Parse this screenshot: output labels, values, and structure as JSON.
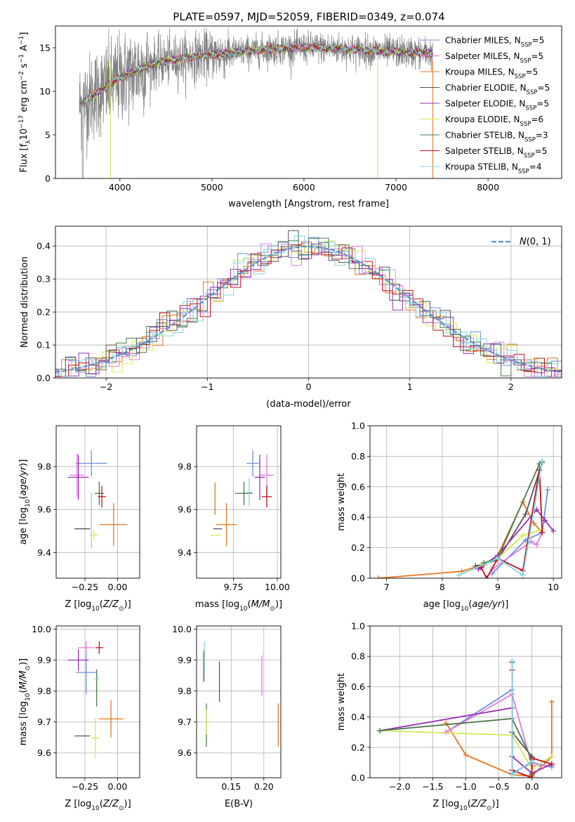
{
  "figure_title": "PLATE=0597, MJD=52059, FIBERID=0349, z=0.074",
  "colors": {
    "chabrier_miles": "#6f8fdc",
    "salpeter_miles": "#e07be0",
    "kroupa_miles": "#e8761e",
    "chabrier_elodie": "#555555",
    "salpeter_elodie": "#9a2fb4",
    "kroupa_elodie": "#d4e75a",
    "chabrier_stelib": "#4a7a4a",
    "salpeter_stelib": "#c0101a",
    "kroupa_stelib": "#7fd6e0",
    "data_grey": "#808080",
    "normal_curve": "#5b8fd6"
  },
  "chart_data": [
    {
      "id": "spectrum",
      "type": "line",
      "title": "PLATE=0597, MJD=52059, FIBERID=0349, z=0.074",
      "xlabel": "wavelength [Angstrom, rest frame]",
      "ylabel": "Flux [f_λ10^-17 erg cm^-2 s^-1 A^-1]",
      "xlim": [
        3300,
        8800
      ],
      "ylim": [
        0,
        17.5
      ],
      "xticks": [
        4000,
        5000,
        6000,
        7000,
        8000
      ],
      "yticks": [
        0,
        5,
        10,
        15
      ],
      "grid": false,
      "legend_placement": "right",
      "legend": [
        "Chabrier MILES, N_SSP=5",
        "Salpeter MILES, N_SSP=5",
        "Kroupa MILES, N_SSP=5",
        "Chabrier ELODIE, N_SSP=5",
        "Salpeter ELODIE, N_SSP=5",
        "Kroupa ELODIE, N_SSP=6",
        "Chabrier STELIB, N_SSP=3",
        "Salpeter STELIB, N_SSP=5",
        "Kroupa STELIB, N_SSP=4"
      ],
      "continuum": {
        "x": [
          3580,
          3700,
          3850,
          4000,
          4200,
          4400,
          4700,
          5000,
          5300,
          5600,
          5900,
          6200,
          6500,
          6800,
          7100,
          7400,
          7600
        ],
        "y": [
          8.5,
          9.5,
          10.5,
          11.5,
          12.5,
          13.3,
          13.8,
          14.2,
          14.5,
          14.8,
          15.0,
          15.0,
          14.8,
          14.6,
          14.5,
          14.3,
          14.2
        ]
      },
      "data_extent_x": [
        3560,
        7400
      ]
    },
    {
      "id": "residuals",
      "type": "bar",
      "xlabel": "(data-model)/error",
      "ylabel": "Normed distribution",
      "xlim": [
        -2.5,
        2.5
      ],
      "ylim": [
        0,
        0.46
      ],
      "xticks": [
        -2,
        -1,
        0,
        1,
        2
      ],
      "yticks": [
        0.0,
        0.1,
        0.2,
        0.3,
        0.4
      ],
      "grid": true,
      "legend_placement": "top-right",
      "legend": [
        "N(0,1)"
      ],
      "bin_width": 0.1,
      "series_count": 9
    },
    {
      "id": "age-vs-Z",
      "type": "scatter",
      "xlabel": "Z [log10(Z/Z☉)]",
      "ylabel": "age  [log10(age/yr)]",
      "xlim": [
        -0.47,
        0.17
      ],
      "ylim": [
        9.28,
        9.99
      ],
      "xticks": [
        -0.25,
        0.0
      ],
      "yticks": [
        9.4,
        9.6,
        9.8
      ],
      "grid": true,
      "points": [
        {
          "c": "chabrier_miles",
          "x": -0.2,
          "y": 9.815,
          "xe": 0.24,
          "ye": 0.12
        },
        {
          "c": "salpeter_miles",
          "x": -0.31,
          "y": 9.76,
          "xe": 0.11,
          "ye": 0.2
        },
        {
          "c": "kroupa_miles",
          "x": -0.03,
          "y": 9.53,
          "xe": 0.21,
          "ye": 0.2
        },
        {
          "c": "chabrier_elodie",
          "x": -0.27,
          "y": 9.51,
          "xe": 0.12,
          "ye": 0.0
        },
        {
          "c": "salpeter_elodie",
          "x": -0.3,
          "y": 9.75,
          "xe": 0.16,
          "ye": 0.21
        },
        {
          "c": "kroupa_elodie",
          "x": -0.18,
          "y": 9.48,
          "xe": 0.06,
          "ye": 0.05
        },
        {
          "c": "chabrier_stelib",
          "x": -0.14,
          "y": 9.675,
          "xe": 0.07,
          "ye": 0.11
        },
        {
          "c": "salpeter_stelib",
          "x": -0.12,
          "y": 9.66,
          "xe": 0.06,
          "ye": 0.1
        },
        {
          "c": "kroupa_stelib",
          "x": -0.2,
          "y": 9.55,
          "xe": 0.0,
          "ye": 0.26
        }
      ]
    },
    {
      "id": "age-vs-mass",
      "type": "scatter",
      "xlabel": "mass [log10(M/M☉)]",
      "ylabel": "",
      "xlim": [
        9.54,
        10.02
      ],
      "ylim": [
        9.28,
        9.99
      ],
      "xticks": [
        9.75,
        10.0
      ],
      "yticks": [
        9.4,
        9.6,
        9.8
      ],
      "grid": true,
      "points": [
        {
          "c": "chabrier_miles",
          "x": 9.86,
          "y": 9.815,
          "xe": 0.07,
          "ye": 0.12
        },
        {
          "c": "salpeter_miles",
          "x": 9.94,
          "y": 9.76,
          "xe": 0.08,
          "ye": 0.2
        },
        {
          "c": "kroupa_miles",
          "x": 9.71,
          "y": 9.53,
          "xe": 0.12,
          "ye": 0.2
        },
        {
          "c": "chabrier_elodie",
          "x": 9.66,
          "y": 9.51,
          "xe": 0.05,
          "ye": 0.0
        },
        {
          "c": "salpeter_elodie",
          "x": 9.9,
          "y": 9.75,
          "xe": 0.06,
          "ye": 0.21
        },
        {
          "c": "kroupa_elodie",
          "x": 9.65,
          "y": 9.48,
          "xe": 0.06,
          "ye": 0.0
        },
        {
          "c": "chabrier_stelib",
          "x": 9.81,
          "y": 9.675,
          "xe": 0.1,
          "ye": 0.11
        },
        {
          "c": "salpeter_stelib",
          "x": 9.94,
          "y": 9.66,
          "xe": 0.06,
          "ye": 0.1
        },
        {
          "c": "kroupa_stelib",
          "x": 9.84,
          "y": 9.68,
          "xe": 0.03,
          "ye": 0.13
        },
        {
          "c": "kroupa_miles",
          "x": 9.645,
          "y": 9.65,
          "xe": 0.0,
          "ye": 0.15
        }
      ]
    },
    {
      "id": "weight-vs-age",
      "type": "line",
      "xlabel": "age  [log10(age/yr)]",
      "ylabel": "mass weight",
      "xlim": [
        6.7,
        10.15
      ],
      "ylim": [
        0,
        1.0
      ],
      "xticks": [
        7,
        8,
        9,
        10
      ],
      "yticks": [
        0.0,
        0.2,
        0.4,
        0.6,
        0.8,
        1.0
      ],
      "grid": true,
      "series": [
        {
          "c": "kroupa_miles",
          "x": [
            6.85,
            8.35,
            8.75,
            9.0,
            9.45,
            9.65,
            9.8
          ],
          "y": [
            0.0,
            0.045,
            0.09,
            0.15,
            0.5,
            0.36,
            0.3
          ]
        },
        {
          "c": "chabrier_miles",
          "x": [
            8.9,
            9.5,
            9.8,
            9.9
          ],
          "y": [
            0.03,
            0.25,
            0.3,
            0.58
          ]
        },
        {
          "c": "salpeter_miles",
          "x": [
            8.9,
            9.6,
            9.7,
            9.8
          ],
          "y": [
            0.06,
            0.24,
            0.22,
            0.3
          ]
        },
        {
          "c": "chabrier_elodie",
          "x": [
            8.6,
            9.0,
            9.5,
            9.8
          ],
          "y": [
            0.08,
            0.12,
            0.42,
            0.76
          ]
        },
        {
          "c": "salpeter_elodie",
          "x": [
            8.65,
            9.0,
            9.7,
            9.85,
            10.0
          ],
          "y": [
            0.06,
            0.15,
            0.45,
            0.38,
            0.31
          ]
        },
        {
          "c": "kroupa_elodie",
          "x": [
            8.7,
            9.0,
            9.45,
            9.8
          ],
          "y": [
            0.09,
            0.13,
            0.28,
            0.32
          ]
        },
        {
          "c": "chabrier_stelib",
          "x": [
            8.75,
            9.0,
            9.75
          ],
          "y": [
            0.1,
            0.13,
            0.75
          ]
        },
        {
          "c": "salpeter_stelib",
          "x": [
            8.7,
            8.8,
            9.0,
            9.45,
            9.75,
            9.8
          ],
          "y": [
            0.07,
            0.0,
            0.13,
            0.05,
            0.71,
            0.3
          ]
        },
        {
          "c": "kroupa_stelib",
          "x": [
            8.3,
            9.0,
            9.45,
            9.8
          ],
          "y": [
            0.02,
            0.13,
            0.02,
            0.77
          ]
        }
      ]
    },
    {
      "id": "mass-vs-Z",
      "type": "scatter",
      "xlabel": "Z [log10(Z/Z☉)]",
      "ylabel": "mass [log10(M/M☉)]",
      "xlim": [
        -0.47,
        0.17
      ],
      "ylim": [
        9.52,
        10.01
      ],
      "xticks": [
        -0.25,
        0.0
      ],
      "yticks": [
        9.6,
        9.7,
        9.8,
        9.9,
        10.0
      ],
      "grid": true,
      "points": [
        {
          "c": "chabrier_miles",
          "x": -0.24,
          "y": 9.86,
          "xe": 0.16,
          "ye": 0.14
        },
        {
          "c": "salpeter_miles",
          "x": -0.24,
          "y": 9.94,
          "xe": 0.12,
          "ye": 0.04
        },
        {
          "c": "kroupa_miles",
          "x": -0.05,
          "y": 9.71,
          "xe": 0.19,
          "ye": 0.12
        },
        {
          "c": "chabrier_elodie",
          "x": -0.27,
          "y": 9.655,
          "xe": 0.12,
          "ye": 0.0
        },
        {
          "c": "salpeter_elodie",
          "x": -0.3,
          "y": 9.9,
          "xe": 0.16,
          "ye": 0.07
        },
        {
          "c": "kroupa_elodie",
          "x": -0.17,
          "y": 9.648,
          "xe": 0.06,
          "ye": 0.13
        },
        {
          "c": "chabrier_stelib",
          "x": -0.16,
          "y": 9.81,
          "xe": 0.0,
          "ye": 0.12
        },
        {
          "c": "salpeter_stelib",
          "x": -0.14,
          "y": 9.94,
          "xe": 0.06,
          "ye": 0.04
        },
        {
          "c": "kroupa_stelib",
          "x": -0.16,
          "y": 9.84,
          "xe": 0.04,
          "ye": 0.0
        }
      ]
    },
    {
      "id": "mass-vs-EBV",
      "type": "scatter",
      "xlabel": "E(B-V)",
      "ylabel": "",
      "xlim": [
        0.097,
        0.226
      ],
      "ylim": [
        9.52,
        10.01
      ],
      "xticks": [
        0.15,
        0.2
      ],
      "yticks": [
        9.6,
        9.7,
        9.8,
        9.9,
        10.0
      ],
      "grid": true,
      "points": [
        {
          "c": "salpeter_stelib",
          "x": 0.108,
          "y": 9.88,
          "xe": 0.0,
          "ye": 0.1
        },
        {
          "c": "chabrier_stelib",
          "x": 0.112,
          "y": 9.69,
          "xe": 0.0,
          "ye": 0.14
        },
        {
          "c": "kroupa_elodie",
          "x": 0.112,
          "y": 9.7,
          "xe": 0.0,
          "ye": 0.08
        },
        {
          "c": "kroupa_stelib",
          "x": 0.109,
          "y": 9.9,
          "xe": 0.0,
          "ye": 0.12
        },
        {
          "c": "salpeter_elodie",
          "x": 0.132,
          "y": 9.83,
          "xe": 0.0,
          "ye": 0.13
        },
        {
          "c": "salpeter_miles",
          "x": 0.197,
          "y": 9.85,
          "xe": 0.0,
          "ye": 0.13
        },
        {
          "c": "kroupa_miles",
          "x": 0.222,
          "y": 9.69,
          "xe": 0.0,
          "ye": 0.14
        }
      ]
    },
    {
      "id": "weight-vs-Z",
      "type": "line",
      "xlabel": "Z [log10(Z/Z☉)]",
      "ylabel": "mass weight",
      "xlim": [
        -2.45,
        0.45
      ],
      "ylim": [
        0,
        1.0
      ],
      "xticks": [
        -2.0,
        -1.5,
        -1.0,
        -0.5,
        0.0
      ],
      "yticks": [
        0.0,
        0.2,
        0.4,
        0.6,
        0.8,
        1.0
      ],
      "grid": true,
      "series": [
        {
          "c": "kroupa_miles",
          "x": [
            -1.3,
            -1.0,
            -0.3,
            0.0,
            0.3,
            0.3
          ],
          "y": [
            0.36,
            0.15,
            0.02,
            0.01,
            0.14,
            0.5
          ]
        },
        {
          "c": "chabrier_miles",
          "x": [
            -1.3,
            -0.3,
            -0.3,
            0.0,
            0.3
          ],
          "y": [
            0.3,
            0.58,
            0.03,
            0.1,
            0.07
          ]
        },
        {
          "c": "salpeter_miles",
          "x": [
            -1.3,
            -0.3,
            0.0,
            0.3
          ],
          "y": [
            0.3,
            0.55,
            0.08,
            0.08
          ]
        },
        {
          "c": "chabrier_elodie",
          "x": [
            -0.3,
            -0.3,
            0.0,
            0.0
          ],
          "y": [
            0.76,
            0.3,
            0.14,
            0.02
          ]
        },
        {
          "c": "salpeter_elodie",
          "x": [
            -2.3,
            -0.3,
            -0.3,
            0.0,
            0.3
          ],
          "y": [
            0.31,
            0.46,
            0.14,
            0.03,
            0.09
          ]
        },
        {
          "c": "kroupa_elodie",
          "x": [
            -2.3,
            -0.3,
            0.0,
            0.3
          ],
          "y": [
            0.31,
            0.28,
            0.06,
            0.14
          ]
        },
        {
          "c": "chabrier_stelib",
          "x": [
            -2.3,
            -0.3,
            0.0,
            0.0
          ],
          "y": [
            0.31,
            0.39,
            0.12,
            0.13
          ]
        },
        {
          "c": "salpeter_stelib",
          "x": [
            -0.3,
            -0.3,
            0.0,
            0.0,
            0.3
          ],
          "y": [
            0.71,
            0.05,
            0.0,
            0.13,
            0.09
          ]
        },
        {
          "c": "kroupa_stelib",
          "x": [
            -0.3,
            -0.3,
            0.0
          ],
          "y": [
            0.77,
            0.02,
            0.11
          ]
        }
      ]
    }
  ]
}
